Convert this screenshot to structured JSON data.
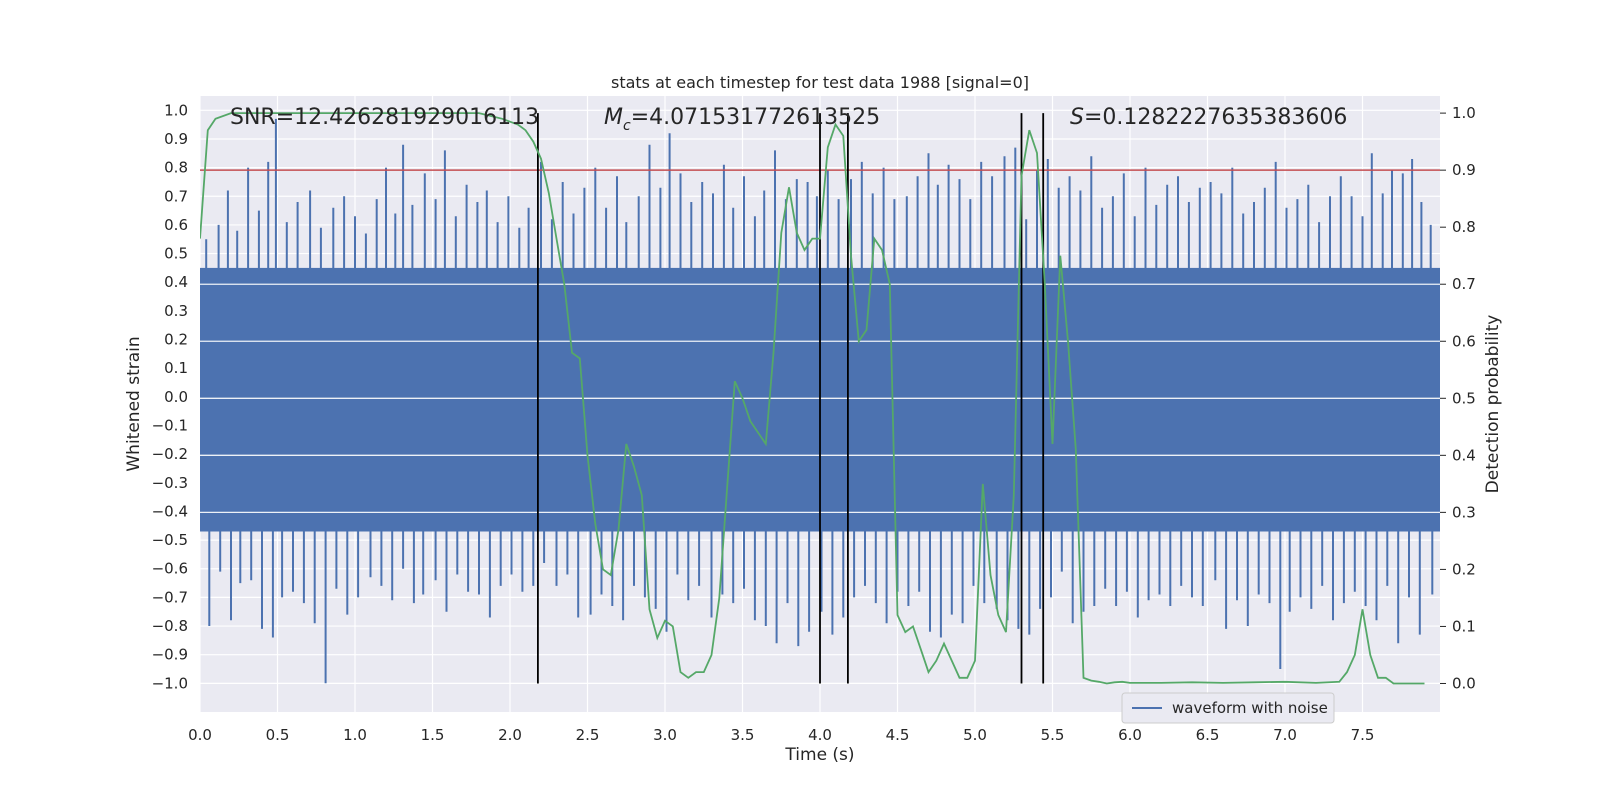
{
  "chart_data": {
    "type": "line",
    "title": "stats at each timestep for test data 1988 [signal=0]",
    "xlabel": "Time (s)",
    "ylabel_left": "Whitened strain",
    "ylabel_right": "Detection probability",
    "xlim": [
      0.0,
      8.0
    ],
    "ylim_left": [
      -1.1,
      1.05
    ],
    "ylim_right": [
      -0.05,
      1.03
    ],
    "x_ticks": [
      0.0,
      0.5,
      1.0,
      1.5,
      2.0,
      2.5,
      3.0,
      3.5,
      4.0,
      4.5,
      5.0,
      5.5,
      6.0,
      6.5,
      7.0,
      7.5
    ],
    "x_tick_labels": [
      "0.0",
      "0.5",
      "1.0",
      "1.5",
      "2.0",
      "2.5",
      "3.0",
      "3.5",
      "4.0",
      "4.5",
      "5.0",
      "5.5",
      "6.0",
      "6.5",
      "7.0",
      "7.5"
    ],
    "y_ticks_left": [
      -1.0,
      -0.9,
      -0.8,
      -0.7,
      -0.6,
      -0.5,
      -0.4,
      -0.3,
      -0.2,
      -0.1,
      0.0,
      0.1,
      0.2,
      0.3,
      0.4,
      0.5,
      0.6,
      0.7,
      0.8,
      0.9,
      1.0
    ],
    "y_tick_labels_left": [
      "−1.0",
      "−0.9",
      "−0.8",
      "−0.7",
      "−0.6",
      "−0.5",
      "−0.4",
      "−0.3",
      "−0.2",
      "−0.1",
      "0.0",
      "0.1",
      "0.2",
      "0.3",
      "0.4",
      "0.5",
      "0.6",
      "0.7",
      "0.8",
      "0.9",
      "1.0"
    ],
    "y_ticks_right": [
      0.0,
      0.1,
      0.2,
      0.3,
      0.4,
      0.5,
      0.6,
      0.7,
      0.8,
      0.9,
      1.0
    ],
    "y_tick_labels_right": [
      "0.0",
      "0.1",
      "0.2",
      "0.3",
      "0.4",
      "0.5",
      "0.6",
      "0.7",
      "0.8",
      "0.9",
      "1.0"
    ],
    "annotations": {
      "snr": "SNR=12.426281929016113",
      "mc_symbol": "M",
      "mc_subscript": "c",
      "mc_value": "=4.071531772613525",
      "s_symbol": "S",
      "s_value": "=0.1282227635383606"
    },
    "threshold": {
      "axis": "right",
      "value": 0.9,
      "color": "#c44e52"
    },
    "vertical_markers": [
      2.18,
      4.0,
      4.18,
      5.3,
      5.44
    ],
    "waveform": {
      "name": "waveform with noise",
      "color": "#4c72b0",
      "envelope_upper": 0.45,
      "envelope_lower": -0.47,
      "peaks": [
        [
          0.04,
          0.55
        ],
        [
          0.12,
          0.6
        ],
        [
          0.18,
          0.72
        ],
        [
          0.24,
          0.58
        ],
        [
          0.31,
          0.8
        ],
        [
          0.38,
          0.65
        ],
        [
          0.44,
          0.82
        ],
        [
          0.49,
          0.97
        ],
        [
          0.56,
          0.61
        ],
        [
          0.63,
          0.68
        ],
        [
          0.71,
          0.72
        ],
        [
          0.78,
          0.59
        ],
        [
          0.86,
          0.66
        ],
        [
          0.93,
          0.7
        ],
        [
          1.0,
          0.63
        ],
        [
          1.07,
          0.57
        ],
        [
          1.14,
          0.69
        ],
        [
          1.2,
          0.8
        ],
        [
          1.26,
          0.64
        ],
        [
          1.31,
          0.88
        ],
        [
          1.37,
          0.67
        ],
        [
          1.45,
          0.78
        ],
        [
          1.52,
          0.69
        ],
        [
          1.58,
          0.86
        ],
        [
          1.65,
          0.63
        ],
        [
          1.72,
          0.74
        ],
        [
          1.79,
          0.68
        ],
        [
          1.85,
          0.72
        ],
        [
          1.92,
          0.61
        ],
        [
          1.99,
          0.7
        ],
        [
          2.06,
          0.59
        ],
        [
          2.12,
          0.66
        ],
        [
          2.2,
          0.82
        ],
        [
          2.27,
          0.62
        ],
        [
          2.34,
          0.75
        ],
        [
          2.41,
          0.64
        ],
        [
          2.48,
          0.73
        ],
        [
          2.55,
          0.8
        ],
        [
          2.62,
          0.66
        ],
        [
          2.69,
          0.77
        ],
        [
          2.75,
          0.61
        ],
        [
          2.83,
          0.7
        ],
        [
          2.9,
          0.88
        ],
        [
          2.97,
          0.73
        ],
        [
          3.03,
          0.92
        ],
        [
          3.1,
          0.78
        ],
        [
          3.17,
          0.68
        ],
        [
          3.24,
          0.75
        ],
        [
          3.31,
          0.71
        ],
        [
          3.38,
          0.81
        ],
        [
          3.44,
          0.66
        ],
        [
          3.51,
          0.77
        ],
        [
          3.58,
          0.63
        ],
        [
          3.64,
          0.72
        ],
        [
          3.71,
          0.86
        ],
        [
          3.78,
          0.69
        ],
        [
          3.85,
          0.76
        ],
        [
          3.92,
          0.75
        ],
        [
          3.98,
          0.7
        ],
        [
          4.05,
          0.79
        ],
        [
          4.12,
          0.69
        ],
        [
          4.2,
          0.76
        ],
        [
          4.27,
          0.82
        ],
        [
          4.34,
          0.71
        ],
        [
          4.41,
          0.8
        ],
        [
          4.48,
          0.69
        ],
        [
          4.56,
          0.7
        ],
        [
          4.63,
          0.77
        ],
        [
          4.7,
          0.85
        ],
        [
          4.76,
          0.74
        ],
        [
          4.83,
          0.81
        ],
        [
          4.9,
          0.76
        ],
        [
          4.97,
          0.69
        ],
        [
          5.04,
          0.82
        ],
        [
          5.11,
          0.77
        ],
        [
          5.19,
          0.84
        ],
        [
          5.26,
          0.87
        ],
        [
          5.33,
          0.62
        ],
        [
          5.4,
          0.79
        ],
        [
          5.47,
          0.83
        ],
        [
          5.54,
          0.73
        ],
        [
          5.61,
          0.77
        ],
        [
          5.68,
          0.72
        ],
        [
          5.75,
          0.84
        ],
        [
          5.82,
          0.66
        ],
        [
          5.89,
          0.7
        ],
        [
          5.96,
          0.78
        ],
        [
          6.03,
          0.63
        ],
        [
          6.1,
          0.8
        ],
        [
          6.17,
          0.67
        ],
        [
          6.24,
          0.74
        ],
        [
          6.31,
          0.77
        ],
        [
          6.38,
          0.68
        ],
        [
          6.45,
          0.73
        ],
        [
          6.52,
          0.75
        ],
        [
          6.59,
          0.71
        ],
        [
          6.66,
          0.8
        ],
        [
          6.73,
          0.64
        ],
        [
          6.8,
          0.68
        ],
        [
          6.87,
          0.73
        ],
        [
          6.94,
          0.82
        ],
        [
          7.01,
          0.66
        ],
        [
          7.08,
          0.69
        ],
        [
          7.15,
          0.74
        ],
        [
          7.22,
          0.61
        ],
        [
          7.29,
          0.7
        ],
        [
          7.36,
          0.77
        ],
        [
          7.43,
          0.7
        ],
        [
          7.5,
          0.63
        ],
        [
          7.56,
          0.85
        ],
        [
          7.63,
          0.71
        ],
        [
          7.69,
          0.79
        ],
        [
          7.76,
          0.78
        ],
        [
          7.82,
          0.83
        ],
        [
          7.88,
          0.68
        ],
        [
          7.94,
          0.6
        ]
      ],
      "troughs": [
        [
          0.06,
          -0.8
        ],
        [
          0.13,
          -0.61
        ],
        [
          0.2,
          -0.78
        ],
        [
          0.26,
          -0.65
        ],
        [
          0.33,
          -0.64
        ],
        [
          0.4,
          -0.81
        ],
        [
          0.47,
          -0.84
        ],
        [
          0.53,
          -0.7
        ],
        [
          0.6,
          -0.68
        ],
        [
          0.67,
          -0.72
        ],
        [
          0.74,
          -0.79
        ],
        [
          0.81,
          -1.0
        ],
        [
          0.88,
          -0.67
        ],
        [
          0.95,
          -0.76
        ],
        [
          1.02,
          -0.7
        ],
        [
          1.1,
          -0.63
        ],
        [
          1.17,
          -0.66
        ],
        [
          1.24,
          -0.71
        ],
        [
          1.31,
          -0.6
        ],
        [
          1.38,
          -0.72
        ],
        [
          1.44,
          -0.69
        ],
        [
          1.52,
          -0.64
        ],
        [
          1.59,
          -0.75
        ],
        [
          1.66,
          -0.62
        ],
        [
          1.73,
          -0.68
        ],
        [
          1.8,
          -0.69
        ],
        [
          1.87,
          -0.77
        ],
        [
          1.94,
          -0.66
        ],
        [
          2.01,
          -0.62
        ],
        [
          2.08,
          -0.68
        ],
        [
          2.15,
          -0.66
        ],
        [
          2.22,
          -0.58
        ],
        [
          2.3,
          -0.66
        ],
        [
          2.37,
          -0.62
        ],
        [
          2.44,
          -0.77
        ],
        [
          2.52,
          -0.76
        ],
        [
          2.59,
          -0.69
        ],
        [
          2.66,
          -0.73
        ],
        [
          2.73,
          -0.78
        ],
        [
          2.8,
          -0.66
        ],
        [
          2.87,
          -0.7
        ],
        [
          2.94,
          -0.74
        ],
        [
          3.01,
          -0.82
        ],
        [
          3.08,
          -0.62
        ],
        [
          3.15,
          -0.71
        ],
        [
          3.22,
          -0.66
        ],
        [
          3.3,
          -0.77
        ],
        [
          3.37,
          -0.69
        ],
        [
          3.44,
          -0.72
        ],
        [
          3.51,
          -0.67
        ],
        [
          3.58,
          -0.78
        ],
        [
          3.65,
          -0.8
        ],
        [
          3.72,
          -0.86
        ],
        [
          3.79,
          -0.72
        ],
        [
          3.86,
          -0.87
        ],
        [
          3.93,
          -0.82
        ],
        [
          4.01,
          -0.75
        ],
        [
          4.08,
          -0.83
        ],
        [
          4.15,
          -0.77
        ],
        [
          4.22,
          -0.7
        ],
        [
          4.29,
          -0.66
        ],
        [
          4.36,
          -0.72
        ],
        [
          4.43,
          -0.79
        ],
        [
          4.5,
          -0.68
        ],
        [
          4.57,
          -0.73
        ],
        [
          4.64,
          -0.68
        ],
        [
          4.71,
          -0.82
        ],
        [
          4.78,
          -0.84
        ],
        [
          4.85,
          -0.76
        ],
        [
          4.92,
          -0.79
        ],
        [
          4.99,
          -0.66
        ],
        [
          5.06,
          -0.72
        ],
        [
          5.14,
          -0.74
        ],
        [
          5.21,
          -0.78
        ],
        [
          5.28,
          -0.81
        ],
        [
          5.35,
          -0.83
        ],
        [
          5.42,
          -0.74
        ],
        [
          5.49,
          -0.7
        ],
        [
          5.56,
          -0.61
        ],
        [
          5.63,
          -0.79
        ],
        [
          5.7,
          -0.75
        ],
        [
          5.77,
          -0.73
        ],
        [
          5.84,
          -0.67
        ],
        [
          5.91,
          -0.73
        ],
        [
          5.98,
          -0.68
        ],
        [
          6.05,
          -0.77
        ],
        [
          6.12,
          -0.71
        ],
        [
          6.19,
          -0.69
        ],
        [
          6.26,
          -0.73
        ],
        [
          6.33,
          -0.66
        ],
        [
          6.4,
          -0.7
        ],
        [
          6.47,
          -0.73
        ],
        [
          6.55,
          -0.64
        ],
        [
          6.62,
          -0.81
        ],
        [
          6.69,
          -0.71
        ],
        [
          6.76,
          -0.8
        ],
        [
          6.83,
          -0.69
        ],
        [
          6.9,
          -0.72
        ],
        [
          6.97,
          -0.95
        ],
        [
          7.03,
          -0.75
        ],
        [
          7.1,
          -0.7
        ],
        [
          7.17,
          -0.74
        ],
        [
          7.24,
          -0.66
        ],
        [
          7.31,
          -0.78
        ],
        [
          7.38,
          -0.72
        ],
        [
          7.45,
          -0.68
        ],
        [
          7.52,
          -0.73
        ],
        [
          7.59,
          -0.78
        ],
        [
          7.66,
          -0.66
        ],
        [
          7.73,
          -0.86
        ],
        [
          7.8,
          -0.7
        ],
        [
          7.87,
          -0.83
        ],
        [
          7.95,
          -0.69
        ]
      ]
    },
    "detection_probability": {
      "name": "detection probability",
      "color": "#55a868",
      "x": [
        0.0,
        0.05,
        0.1,
        0.2,
        0.5,
        1.0,
        1.5,
        1.8,
        1.95,
        2.0,
        2.05,
        2.1,
        2.15,
        2.2,
        2.25,
        2.3,
        2.35,
        2.4,
        2.45,
        2.5,
        2.55,
        2.6,
        2.65,
        2.7,
        2.75,
        2.8,
        2.85,
        2.9,
        2.95,
        3.0,
        3.05,
        3.1,
        3.15,
        3.2,
        3.25,
        3.3,
        3.35,
        3.4,
        3.45,
        3.5,
        3.55,
        3.6,
        3.65,
        3.7,
        3.75,
        3.8,
        3.85,
        3.9,
        3.95,
        4.0,
        4.05,
        4.1,
        4.15,
        4.2,
        4.25,
        4.3,
        4.35,
        4.4,
        4.45,
        4.5,
        4.55,
        4.6,
        4.65,
        4.7,
        4.75,
        4.8,
        4.85,
        4.9,
        4.95,
        5.0,
        5.05,
        5.1,
        5.15,
        5.2,
        5.25,
        5.3,
        5.35,
        5.4,
        5.45,
        5.5,
        5.55,
        5.6,
        5.65,
        5.7,
        5.75,
        5.8,
        5.85,
        5.9,
        5.95,
        6.0,
        6.2,
        6.4,
        6.6,
        6.8,
        7.0,
        7.2,
        7.35,
        7.4,
        7.45,
        7.5,
        7.55,
        7.6,
        7.65,
        7.7,
        7.75,
        7.8,
        7.9
      ],
      "y": [
        0.78,
        0.97,
        0.99,
        1.0,
        1.0,
        1.0,
        1.0,
        1.0,
        0.99,
        0.985,
        0.98,
        0.97,
        0.95,
        0.92,
        0.86,
        0.78,
        0.7,
        0.58,
        0.57,
        0.4,
        0.28,
        0.2,
        0.19,
        0.27,
        0.42,
        0.38,
        0.33,
        0.13,
        0.08,
        0.11,
        0.1,
        0.02,
        0.01,
        0.02,
        0.02,
        0.05,
        0.15,
        0.34,
        0.53,
        0.5,
        0.46,
        0.44,
        0.42,
        0.58,
        0.79,
        0.87,
        0.79,
        0.76,
        0.78,
        0.78,
        0.94,
        0.98,
        0.96,
        0.75,
        0.6,
        0.62,
        0.78,
        0.76,
        0.7,
        0.12,
        0.09,
        0.1,
        0.06,
        0.02,
        0.04,
        0.07,
        0.04,
        0.01,
        0.01,
        0.04,
        0.35,
        0.19,
        0.12,
        0.09,
        0.33,
        0.89,
        0.97,
        0.93,
        0.7,
        0.42,
        0.75,
        0.6,
        0.41,
        0.01,
        0.005,
        0.003,
        0.0,
        0.002,
        0.003,
        0.001,
        0.001,
        0.002,
        0.001,
        0.002,
        0.003,
        0.001,
        0.003,
        0.02,
        0.05,
        0.13,
        0.05,
        0.01,
        0.01,
        0.0,
        0.0,
        0.0,
        0.0
      ]
    }
  }
}
